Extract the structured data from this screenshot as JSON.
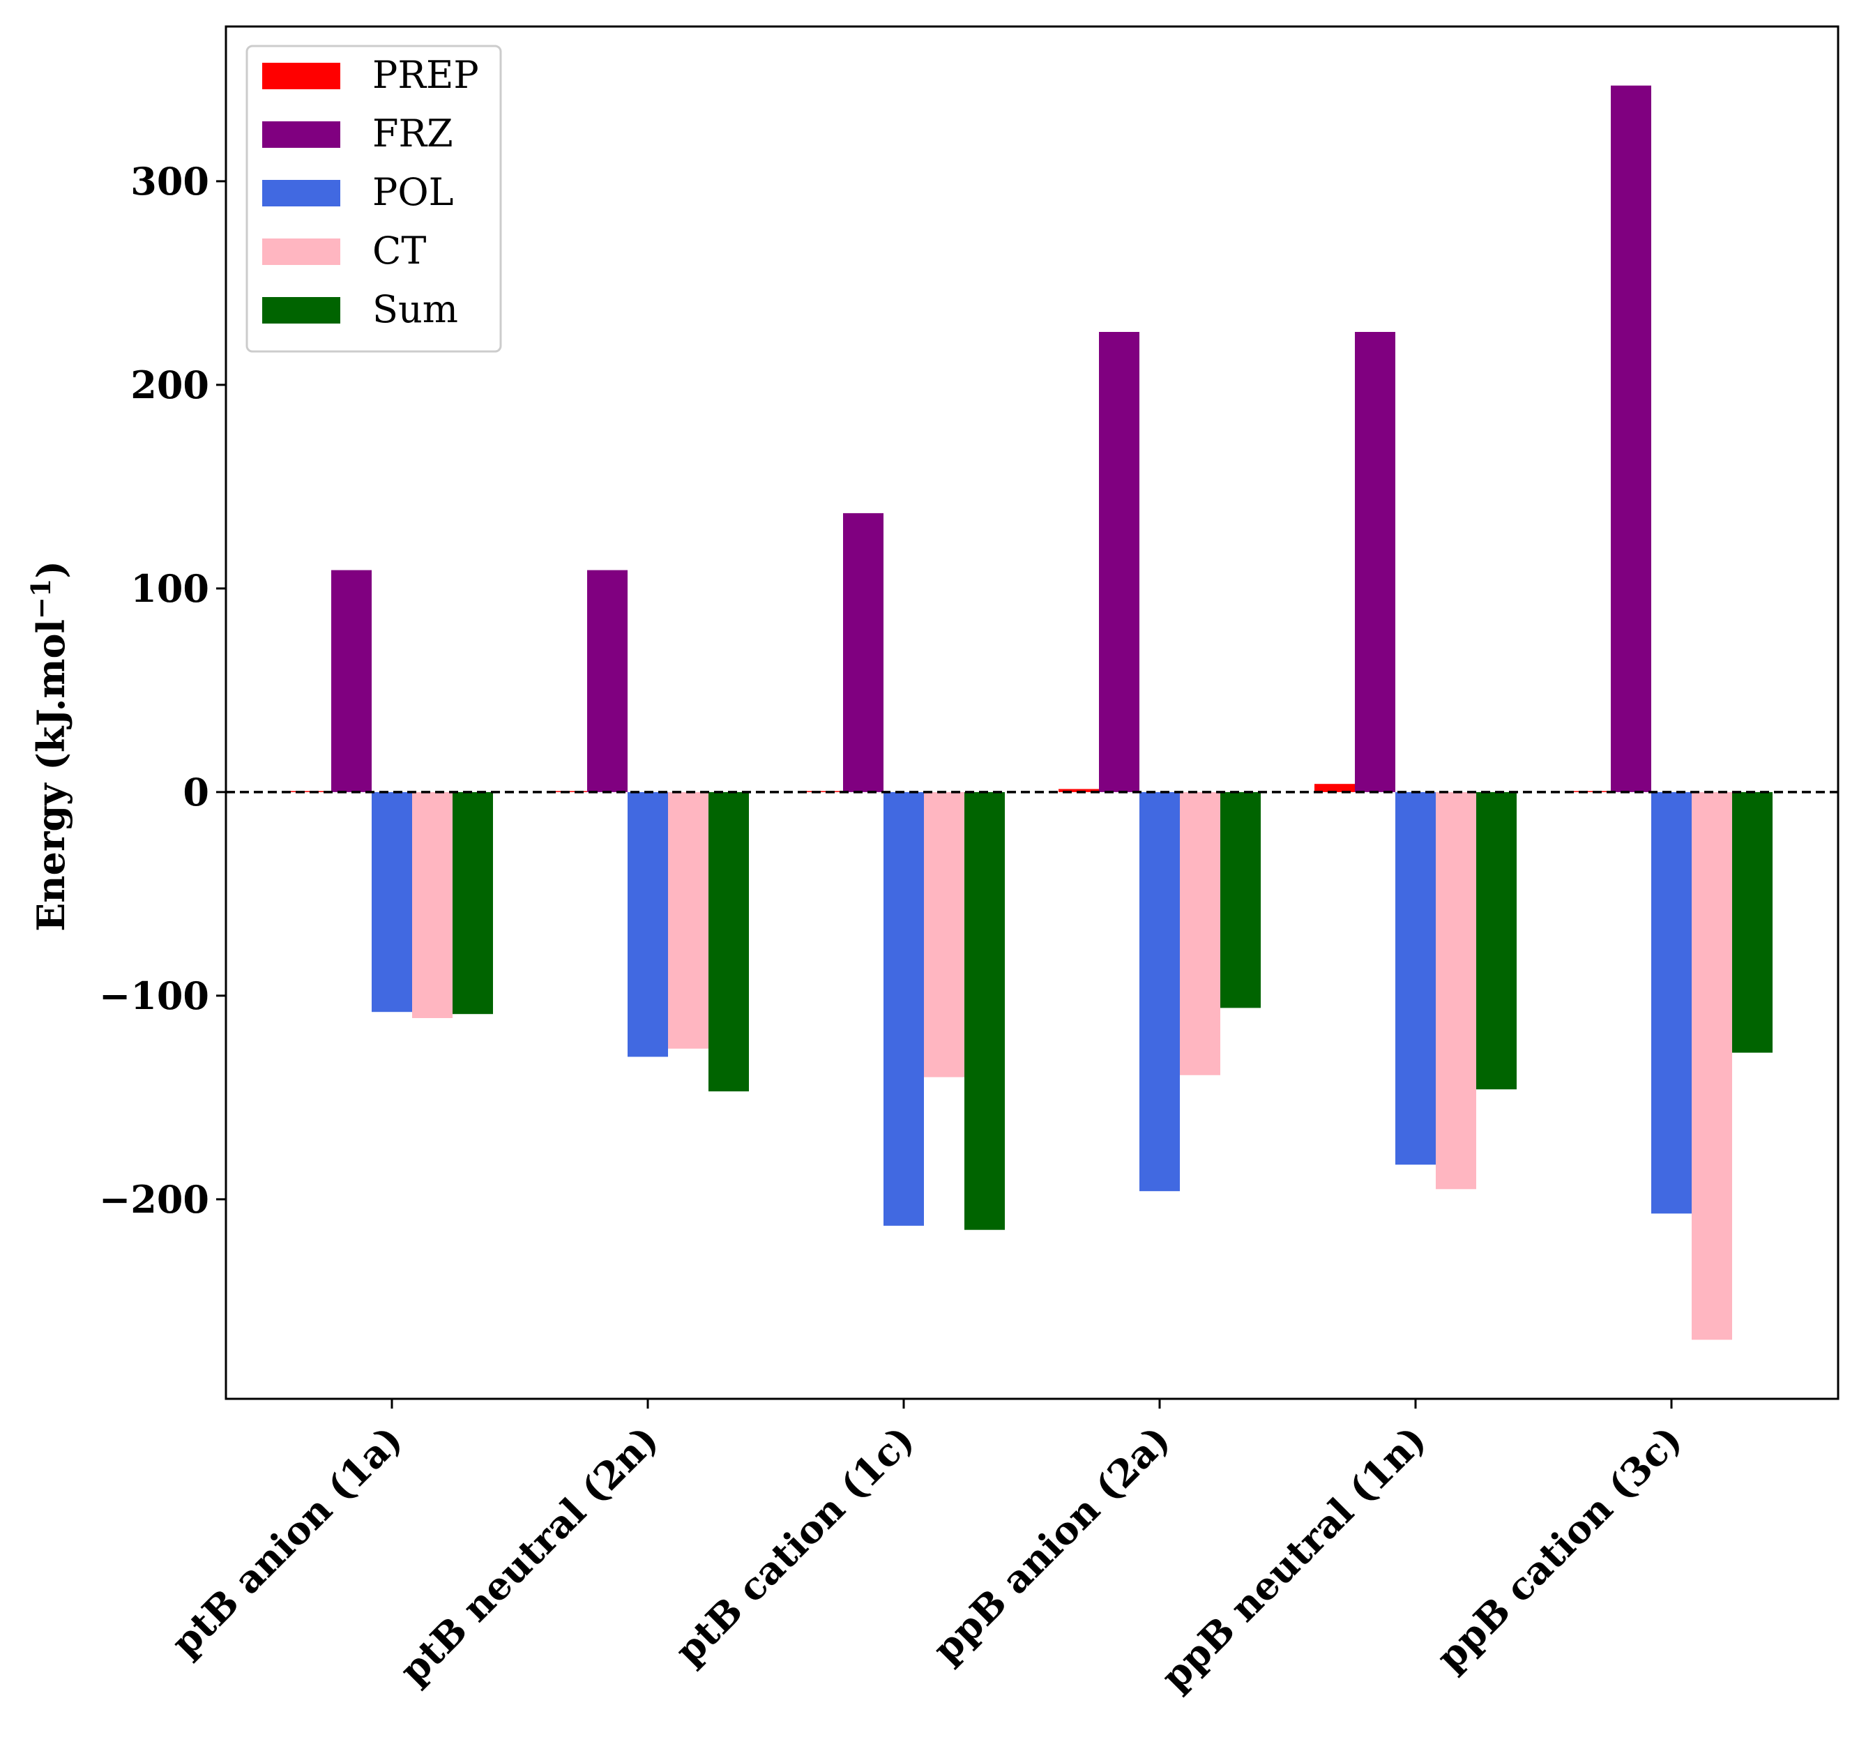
{
  "chart_data": {
    "type": "bar",
    "title": "",
    "xlabel": "",
    "ylabel": "Energy (kJ.mol",
    "ylabel_superscript": "−1",
    "ylabel_close": ")",
    "ylim": [
      -298,
      376
    ],
    "yticks": [
      -200,
      -100,
      0,
      100,
      200,
      300
    ],
    "ytick_labels": [
      "−200",
      "−100",
      "0",
      "100",
      "200",
      "300"
    ],
    "zero_line": "dashed",
    "legend_position": "top-left",
    "categories": [
      "ptB anion (1a)",
      "ptB neutral (2n)",
      "ptB cation (1c)",
      "ppB anion (2a)",
      "ppB neutral (1n)",
      "ppB cation (3c)"
    ],
    "series": [
      {
        "name": "PREP",
        "color": "#ff0000",
        "values": [
          0.5,
          0.5,
          0.5,
          1.5,
          4,
          0.5
        ]
      },
      {
        "name": "FRZ",
        "color": "#800080",
        "values": [
          109,
          109,
          137,
          226,
          226,
          347
        ]
      },
      {
        "name": "POL",
        "color": "#4169e1",
        "values": [
          -108,
          -130,
          -213,
          -196,
          -183,
          -207
        ]
      },
      {
        "name": "CT",
        "color": "#ffb6c1",
        "values": [
          -111,
          -126,
          -140,
          -139,
          -195,
          -269
        ]
      },
      {
        "name": "Sum",
        "color": "#006400",
        "values": [
          -109,
          -147,
          -215,
          -106,
          -146,
          -128
        ]
      }
    ]
  }
}
